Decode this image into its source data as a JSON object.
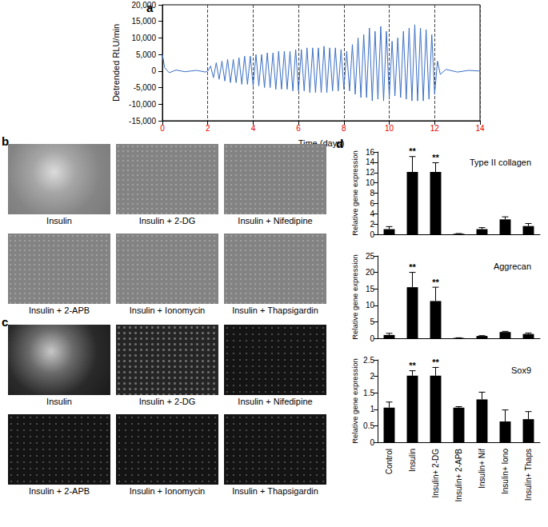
{
  "chart_data": [
    {
      "type": "line",
      "panel": "a",
      "x_label": "Time (days)",
      "y_label": "Detrended RLU/min",
      "color": "#3b6fc4",
      "x": [
        0,
        0.1,
        0.3,
        0.6,
        1,
        1.5,
        1.9,
        2,
        2.125,
        2.25,
        2.375,
        2.5,
        2.625,
        2.75,
        2.875,
        3,
        3.125,
        3.25,
        3.375,
        3.5,
        3.625,
        3.75,
        3.875,
        4,
        4.125,
        4.25,
        4.375,
        4.5,
        4.625,
        4.75,
        4.875,
        5,
        5.125,
        5.25,
        5.375,
        5.5,
        5.625,
        5.75,
        5.875,
        6,
        6.125,
        6.25,
        6.375,
        6.5,
        6.625,
        6.75,
        6.875,
        7,
        7.125,
        7.25,
        7.375,
        7.5,
        7.625,
        7.75,
        7.875,
        8,
        8.125,
        8.25,
        8.375,
        8.5,
        8.625,
        8.75,
        8.875,
        9,
        9.125,
        9.25,
        9.375,
        9.5,
        9.625,
        9.75,
        9.875,
        10,
        10.125,
        10.25,
        10.375,
        10.5,
        10.625,
        10.75,
        10.875,
        11,
        11.125,
        11.25,
        11.375,
        11.5,
        11.625,
        11.75,
        11.875,
        12,
        12.125,
        12.25,
        12.5,
        13,
        13.5,
        14
      ],
      "values": [
        5000,
        1000,
        -500,
        300,
        -200,
        200,
        -300,
        0,
        1500,
        -2000,
        2500,
        -2500,
        3000,
        -3000,
        3500,
        -3500,
        3500,
        -3500,
        4000,
        -4000,
        4500,
        -4000,
        4500,
        -4500,
        5000,
        -4500,
        5000,
        -5000,
        5500,
        -5000,
        5500,
        -5500,
        6000,
        -5500,
        6000,
        -5500,
        6000,
        -6000,
        6500,
        -6000,
        6500,
        -6000,
        7000,
        -6500,
        7000,
        -6500,
        7000,
        -6500,
        7500,
        -6500,
        7000,
        -6000,
        7000,
        -6000,
        6500,
        -5500,
        6000,
        -6000,
        8000,
        -7000,
        10000,
        -8000,
        11000,
        -8000,
        13000,
        -9000,
        12000,
        -8500,
        13500,
        -9000,
        12000,
        -8000,
        9000,
        -7500,
        10000,
        -8000,
        12000,
        -8500,
        13000,
        -9000,
        14000,
        -9000,
        13000,
        -9000,
        12500,
        -8500,
        11000,
        -7000,
        3000,
        -1000,
        500,
        -300,
        200,
        0
      ],
      "xlim": [
        0,
        14
      ],
      "xticks": [
        0,
        2,
        4,
        6,
        8,
        10,
        12,
        14
      ],
      "ylim": [
        -15000,
        20000
      ],
      "yticks": [
        -15000,
        -10000,
        -5000,
        0,
        5000,
        10000,
        15000,
        20000
      ],
      "grid": "x"
    },
    {
      "type": "bar",
      "panel": "d",
      "title": "Type II collagen",
      "y_label": "Relative gene expression",
      "color": "#000000",
      "categories": [
        "Control",
        "Insulin",
        "Insulin+ 2-DG",
        "Insulin+ 2-APB",
        "Insulin+ Nif",
        "Insulin+ Iono",
        "Insulin+ Thaps"
      ],
      "values": [
        1,
        12.1,
        12.1,
        0.1,
        1,
        2.9,
        1.6
      ],
      "errors": [
        0.5,
        3,
        1.8,
        0.05,
        0.3,
        0.5,
        0.5
      ],
      "annotations": [
        {
          "category": "Insulin",
          "text": "**"
        },
        {
          "category": "Insulin+ 2-DG",
          "text": "**"
        }
      ],
      "ylim": [
        0,
        16
      ],
      "yticks": [
        0,
        2,
        4,
        6,
        8,
        10,
        12,
        14,
        16
      ],
      "tick_labels": "y"
    },
    {
      "type": "bar",
      "title": "Aggrecan",
      "y_label": "Relative gene expression",
      "color": "#000000",
      "categories": [
        "Control",
        "Insulin",
        "Insulin+ 2-DG",
        "Insulin+ 2-APB",
        "Insulin+ Nif",
        "Insulin+ Iono",
        "Insulin+ Thaps"
      ],
      "values": [
        1,
        15.5,
        11.3,
        0.1,
        0.7,
        1.9,
        1.3
      ],
      "errors": [
        0.5,
        4.5,
        4.2,
        0.05,
        0.1,
        0.2,
        0.3
      ],
      "annotations": [
        {
          "category": "Insulin",
          "text": "**"
        },
        {
          "category": "Insulin+ 2-DG",
          "text": "**"
        }
      ],
      "ylim": [
        0,
        25
      ],
      "yticks": [
        0,
        5,
        10,
        15,
        20,
        25
      ],
      "tick_labels": "y"
    },
    {
      "type": "bar",
      "title": "Sox9",
      "y_label": "Relative gene expression",
      "color": "#000000",
      "categories": [
        "Control",
        "Insulin",
        "Insulin+ 2-DG",
        "Insulin+ 2-APB",
        "Insulin+ Nif",
        "Insulin+ Iono",
        "Insulin+ Thaps"
      ],
      "values": [
        1.05,
        2.02,
        2.02,
        1.05,
        1.3,
        0.63,
        0.7
      ],
      "errors": [
        0.17,
        0.15,
        0.25,
        0.03,
        0.22,
        0.35,
        0.23
      ],
      "annotations": [
        {
          "category": "Insulin",
          "text": "**"
        },
        {
          "category": "Insulin+ 2-DG",
          "text": "**"
        }
      ],
      "ylim": [
        0,
        2.5
      ],
      "yticks": [
        0,
        0.5,
        1,
        1.5,
        2,
        2.5
      ]
    }
  ],
  "image_panels": [
    {
      "panel": "b",
      "labels": [
        "Insulin",
        "Insulin + 2-DG",
        "Insulin + Nifedipine",
        "Insulin + 2-APB",
        "Insulin + Ionomycin",
        "Insulin + Thapsigardin"
      ]
    },
    {
      "panel": "c",
      "labels": [
        "Insulin",
        "Insulin + 2-DG",
        "Insulin + Nifedipine",
        "Insulin + 2-APB",
        "Insulin + Ionomycin",
        "Insulin + Thapsigardin"
      ]
    }
  ]
}
